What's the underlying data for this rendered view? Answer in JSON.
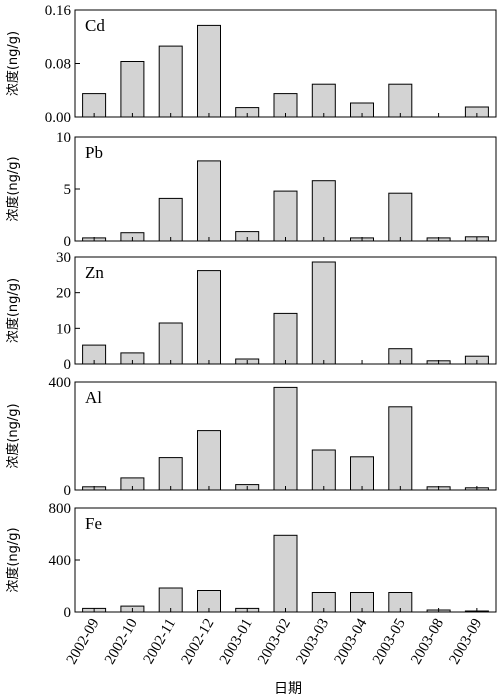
{
  "chart_data": {
    "type": "bar",
    "xlabel": "日期",
    "ylabel": "浓度(ng/g)",
    "categories": [
      "2002-09",
      "2002-10",
      "2002-11",
      "2002-12",
      "2003-01",
      "2003-02",
      "2003-03",
      "2003-04",
      "2003-05",
      "2003-08",
      "2003-09"
    ],
    "bar_color": "#d3d3d3",
    "panels": [
      {
        "name": "Cd",
        "ylim": [
          0,
          0.16
        ],
        "yticks": [
          0,
          0.08,
          0.16
        ],
        "ytick_labels": [
          "0.00",
          "0.08",
          "0.16"
        ],
        "values": [
          0.035,
          0.083,
          0.106,
          0.137,
          0.014,
          0.035,
          0.049,
          0.021,
          0.049,
          0,
          0.015
        ]
      },
      {
        "name": "Pb",
        "ylim": [
          0,
          10
        ],
        "yticks": [
          0,
          5,
          10
        ],
        "ytick_labels": [
          "0",
          "5",
          "10"
        ],
        "values": [
          0.3,
          0.8,
          4.1,
          7.7,
          0.9,
          4.8,
          5.8,
          0.3,
          4.6,
          0.3,
          0.4
        ]
      },
      {
        "name": "Zn",
        "ylim": [
          0,
          30
        ],
        "yticks": [
          0,
          10,
          20,
          30
        ],
        "ytick_labels": [
          "0",
          "10",
          "20",
          "30"
        ],
        "values": [
          5.3,
          3.1,
          11.5,
          26.2,
          1.4,
          14.2,
          28.6,
          0,
          4.3,
          0.9,
          2.2
        ]
      },
      {
        "name": "Al",
        "ylim": [
          0,
          400
        ],
        "yticks": [
          0,
          400
        ],
        "ytick_labels": [
          "0",
          "400"
        ],
        "values": [
          12,
          45,
          120,
          220,
          20,
          380,
          148,
          123,
          308,
          12,
          8
        ]
      },
      {
        "name": "Fe",
        "ylim": [
          0,
          800
        ],
        "yticks": [
          0,
          400,
          800
        ],
        "ytick_labels": [
          "0",
          "400",
          "800"
        ],
        "values": [
          28,
          45,
          185,
          165,
          28,
          590,
          150,
          150,
          150,
          15,
          8
        ]
      }
    ]
  }
}
